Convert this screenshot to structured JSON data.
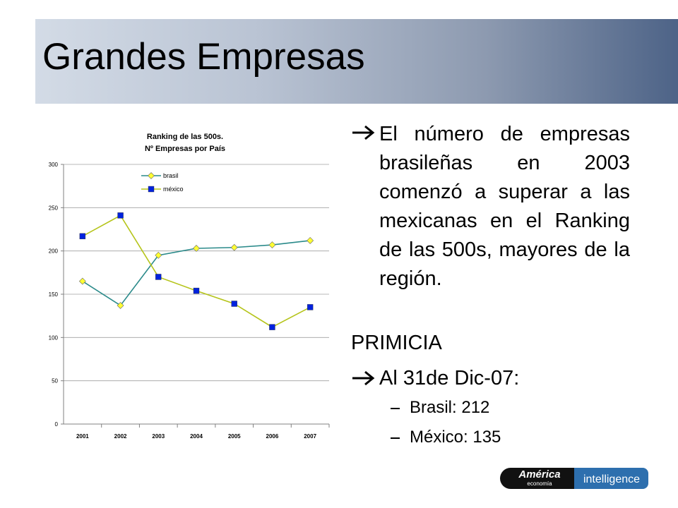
{
  "header": {
    "title": "Grandes Empresas"
  },
  "chart_data": {
    "type": "line",
    "title": "Ranking de las 500s.",
    "subtitle": "Nº Empresas por País",
    "categories": [
      "2001",
      "2002",
      "2003",
      "2004",
      "2005",
      "2006",
      "2007"
    ],
    "series": [
      {
        "name": "brasil",
        "color": "#2a8a8a",
        "marker": "diamond",
        "marker_color": "#ffff33",
        "values": [
          165,
          137,
          195,
          203,
          204,
          207,
          212
        ]
      },
      {
        "name": "méxico",
        "color": "#b5c41a",
        "marker": "square",
        "marker_color": "#0022dd",
        "values": [
          217,
          241,
          170,
          154,
          139,
          112,
          135
        ]
      }
    ],
    "ylim": [
      0,
      300
    ],
    "yticks": [
      0,
      50,
      100,
      150,
      200,
      250,
      300
    ],
    "grid": true,
    "legend": "top"
  },
  "bullets": [
    "El número de empresas brasileñas en 2003 comenzó a superar a las mexicanas en el Ranking de las 500s, mayores de la región.",
    "PRIMICIA",
    "Al 31de Dic-07:"
  ],
  "sub_bullets": [
    "Brasil: 212",
    "México: 135"
  ],
  "logo": {
    "brand": "América",
    "sub": "economía",
    "tag": "intelligence"
  }
}
